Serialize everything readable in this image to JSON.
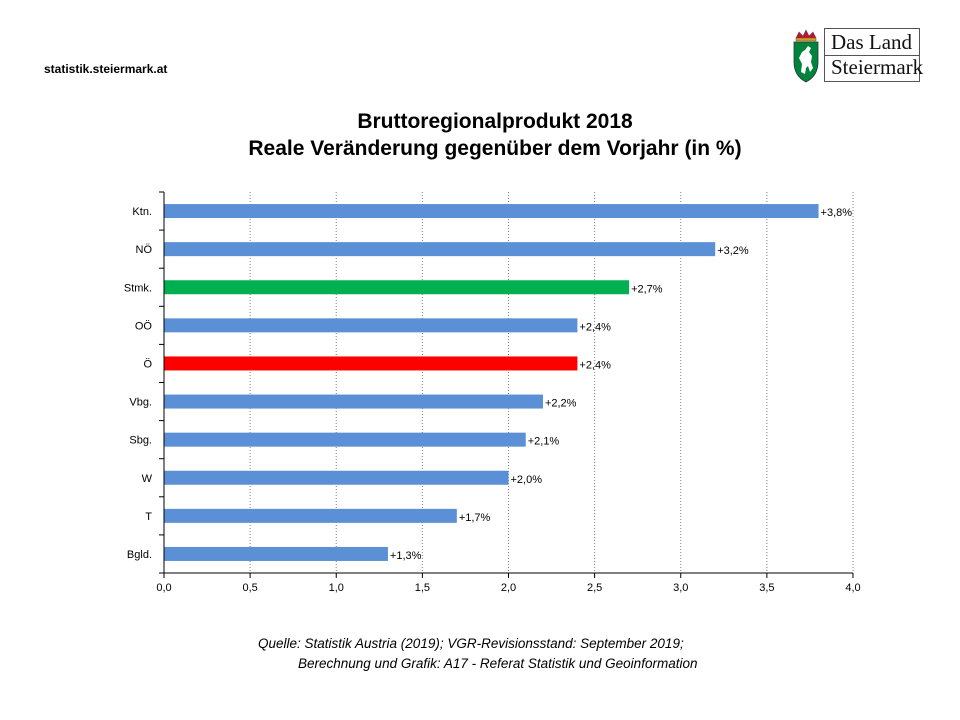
{
  "header": {
    "site_url": "statistik.steiermark.at",
    "logo": {
      "line1": "Das Land",
      "line2": "Steiermark",
      "icon": "steiermark-coat-of-arms"
    }
  },
  "chart_data": {
    "type": "bar",
    "orientation": "horizontal",
    "title_line1": "Bruttoregionalprodukt 2018",
    "title_line2": "Reale Veränderung gegenüber dem Vorjahr (in %)",
    "xlabel": "",
    "ylabel": "",
    "xlim": [
      0.0,
      4.0
    ],
    "x_ticks": [
      "0,0",
      "0,5",
      "1,0",
      "1,5",
      "2,0",
      "2,5",
      "3,0",
      "3,5",
      "4,0"
    ],
    "x_tick_values": [
      0.0,
      0.5,
      1.0,
      1.5,
      2.0,
      2.5,
      3.0,
      3.5,
      4.0
    ],
    "grid": "vertical-dotted",
    "categories": [
      "Ktn.",
      "NÖ",
      "Stmk.",
      "OÖ",
      "Ö",
      "Vbg.",
      "Sbg.",
      "W",
      "T",
      "Bgld."
    ],
    "values": [
      3.8,
      3.2,
      2.7,
      2.4,
      2.4,
      2.2,
      2.1,
      2.0,
      1.7,
      1.3
    ],
    "data_labels": [
      "+3,8%",
      "+3,2%",
      "+2,7%",
      "+2,4%",
      "+2,4%",
      "+2,2%",
      "+2,1%",
      "+2,0%",
      "+1,7%",
      "+1,3%"
    ],
    "colors": [
      "#5B8FD6",
      "#5B8FD6",
      "#00B050",
      "#5B8FD6",
      "#FF0000",
      "#5B8FD6",
      "#5B8FD6",
      "#5B8FD6",
      "#5B8FD6",
      "#5B8FD6"
    ]
  },
  "footer": {
    "source_line1": "Quelle: Statistik Austria (2019); VGR-Revisionsstand: September 2019;",
    "source_line2": "Berechnung und Grafik: A17 - Referat Statistik und Geoinformation"
  }
}
